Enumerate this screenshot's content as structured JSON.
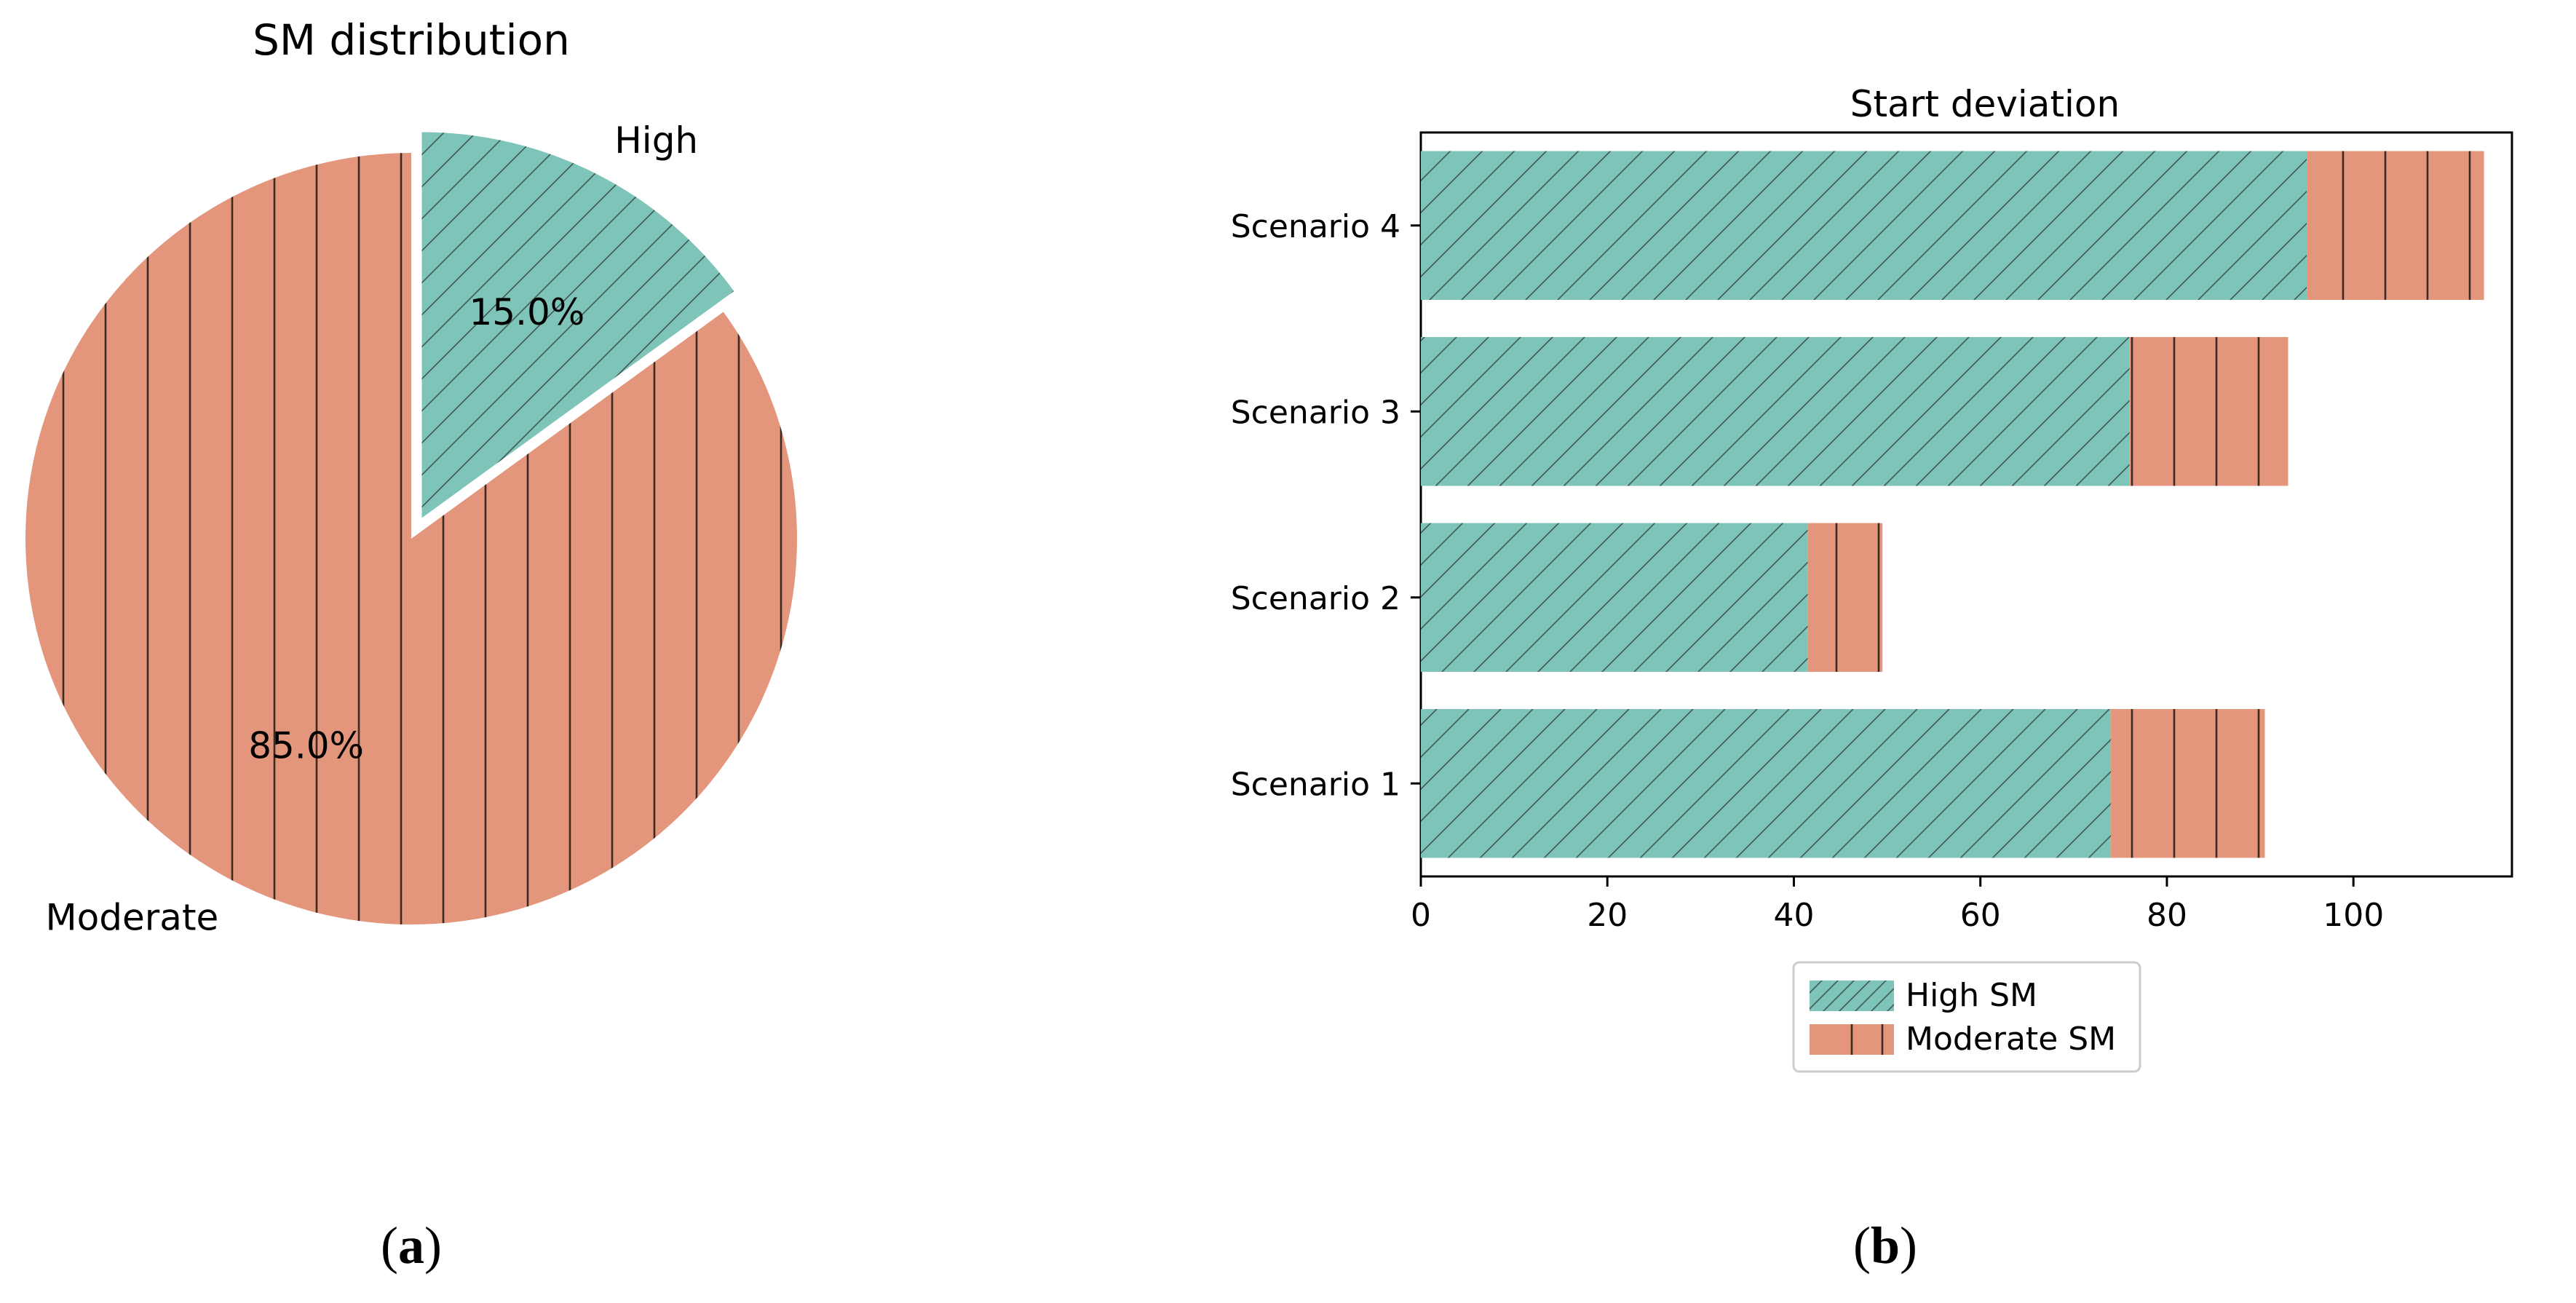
{
  "chart_data": [
    {
      "type": "pie",
      "title": "SM distribution",
      "panel_label": "b_a",
      "panel_open": "(",
      "panel_letter": "a",
      "panel_close": ")",
      "slices": [
        {
          "label": "High",
          "value": 15.0,
          "pct_label": "15.0%",
          "color": "#7fc4b8",
          "hatch": "diagonal",
          "exploded": true
        },
        {
          "label": "Moderate",
          "value": 85.0,
          "pct_label": "85.0%",
          "color": "#e3967b",
          "hatch": "vertical",
          "exploded": false
        }
      ]
    },
    {
      "type": "bar",
      "orientation": "horizontal",
      "stacked": true,
      "title": "Start deviation",
      "panel_open": "(",
      "panel_letter": "b",
      "panel_close": ")",
      "categories": [
        "Scenario 1",
        "Scenario 2",
        "Scenario 3",
        "Scenario 4"
      ],
      "series": [
        {
          "name": "High SM",
          "values": [
            74,
            41.5,
            76,
            95
          ],
          "color": "#7fc4b8",
          "hatch": "diagonal"
        },
        {
          "name": "Moderate SM",
          "values": [
            16.5,
            8,
            17,
            19
          ],
          "color": "#e3967b",
          "hatch": "vertical"
        }
      ],
      "xlim": [
        0,
        117
      ],
      "xticks": [
        0,
        20,
        40,
        60,
        80,
        100
      ],
      "xtick_labels": [
        "0",
        "20",
        "40",
        "60",
        "80",
        "100"
      ],
      "legend_position": "below"
    }
  ]
}
